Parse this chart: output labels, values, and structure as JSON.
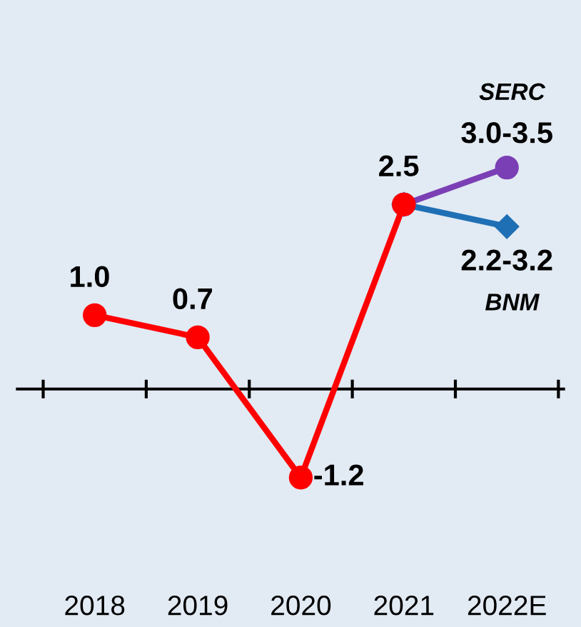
{
  "chart_data": {
    "type": "line",
    "categories": [
      "2018",
      "2019",
      "2020",
      "2021",
      "2022E"
    ],
    "series": [
      {
        "color": "#ff0000",
        "marker": "circle",
        "values": [
          1.0,
          0.7,
          -1.2,
          2.5,
          null
        ],
        "value_labels": [
          "1.0",
          "0.7",
          "-1.2",
          "2.5",
          null
        ]
      },
      {
        "name": "SERC",
        "color": "#7b3fb5",
        "marker": "circle",
        "values": [
          null,
          null,
          null,
          2.5,
          3.0
        ],
        "value_labels": [
          null,
          null,
          null,
          null,
          "3.0-3.5"
        ]
      },
      {
        "name": "BNM",
        "color": "#1f6fb5",
        "marker": "diamond",
        "values": [
          null,
          null,
          null,
          2.5,
          2.2
        ],
        "value_labels": [
          null,
          null,
          null,
          null,
          "2.2-3.2"
        ]
      }
    ],
    "line_style": "solid"
  }
}
